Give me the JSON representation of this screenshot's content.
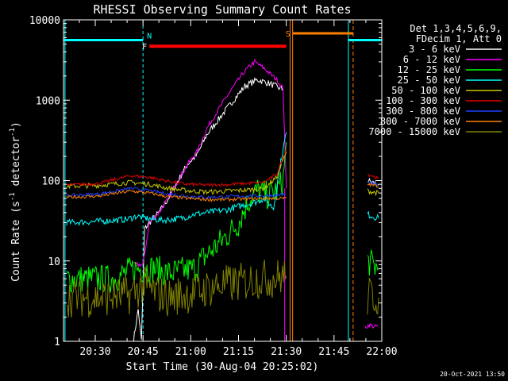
{
  "chart_data": {
    "type": "line",
    "title": "RHESSI Observing Summary Count Rates",
    "xlabel": "Start Time (30-Aug-04 20:25:02)",
    "ylabel_main": "Count Rate (s",
    "ylabel_sup1": "-1",
    "ylabel_mid": " detector",
    "ylabel_sup2": "-1",
    "ylabel_end": ")",
    "yscale": "log",
    "ylim": [
      1,
      10000
    ],
    "xlim_min": [
      25.03,
      125.0
    ],
    "x_ticks": [
      {
        "min": 35,
        "label": "20:30"
      },
      {
        "min": 50,
        "label": "20:45"
      },
      {
        "min": 65,
        "label": "21:00"
      },
      {
        "min": 80,
        "label": "21:15"
      },
      {
        "min": 95,
        "label": "21:30"
      },
      {
        "min": 110,
        "label": "21:45"
      },
      {
        "min": 125,
        "label": "22:00"
      }
    ],
    "y_ticks": [
      {
        "val": 1,
        "label": "1"
      },
      {
        "val": 10,
        "label": "10"
      },
      {
        "val": 100,
        "label": "100"
      },
      {
        "val": 1000,
        "label": "1000"
      },
      {
        "val": 10000,
        "label": "10000"
      }
    ],
    "legend_header1": "Det 1,3,4,5,6,9,",
    "legend_header2": "FDecim 1, Att 0",
    "series": [
      {
        "name": "3 - 6 keV",
        "color": "#ffffff",
        "segments": [
          [
            [
              47,
              1
            ],
            [
              48.5,
              2.5
            ],
            [
              49.5,
              1
            ],
            [
              50.5,
              25
            ],
            [
              52,
              30
            ],
            [
              55,
              40
            ],
            [
              58,
              60
            ],
            [
              61,
              100
            ],
            [
              64,
              160
            ],
            [
              67,
              210
            ],
            [
              70,
              370
            ],
            [
              74,
              600
            ],
            [
              78,
              950
            ],
            [
              82,
              1500
            ],
            [
              86,
              1800
            ],
            [
              90,
              1600
            ],
            [
              94,
              1350
            ]
          ],
          [
            [
              120.5,
              100
            ],
            [
              122,
              95
            ],
            [
              124,
              90
            ]
          ]
        ]
      },
      {
        "name": "6 - 12 keV",
        "color": "#ff00ff",
        "segments": [
          [
            [
              47,
              9
            ],
            [
              48.5,
              9
            ],
            [
              50,
              9
            ],
            [
              52,
              30
            ],
            [
              55,
              40
            ],
            [
              58,
              60
            ],
            [
              61,
              100
            ],
            [
              64,
              160
            ],
            [
              67,
              230
            ],
            [
              70,
              440
            ],
            [
              74,
              800
            ],
            [
              78,
              1400
            ],
            [
              82,
              2300
            ],
            [
              85,
              3000
            ],
            [
              88,
              2500
            ],
            [
              92,
              1800
            ],
            [
              94,
              1400
            ],
            [
              95,
              80
            ]
          ],
          [
            [
              119.8,
              1.5
            ],
            [
              121,
              1.6
            ],
            [
              123,
              1.5
            ],
            [
              124,
              1.6
            ]
          ]
        ]
      },
      {
        "name": "12 - 25 keV",
        "color": "#00ff00",
        "segments": [
          [
            [
              26,
              6
            ],
            [
              36,
              6
            ],
            [
              41,
              6
            ],
            [
              47,
              8
            ],
            [
              50,
              8
            ],
            [
              54,
              8
            ],
            [
              58,
              7
            ],
            [
              62,
              7.5
            ],
            [
              66,
              8
            ],
            [
              69,
              11
            ],
            [
              72,
              14
            ],
            [
              76,
              20
            ],
            [
              80,
              30
            ],
            [
              83,
              55
            ],
            [
              86,
              75
            ],
            [
              89,
              65
            ],
            [
              92,
              75
            ],
            [
              94,
              100
            ],
            [
              95,
              300
            ]
          ],
          [
            [
              120.5,
              10
            ],
            [
              122,
              9
            ],
            [
              124,
              8
            ]
          ]
        ]
      },
      {
        "name": "25 - 50 keV",
        "color": "#00ffff",
        "segments": [
          [
            [
              26,
              30
            ],
            [
              36,
              31
            ],
            [
              45,
              33
            ],
            [
              48,
              36
            ],
            [
              51,
              34
            ],
            [
              56,
              32
            ],
            [
              62,
              34
            ],
            [
              66,
              38
            ],
            [
              70,
              40
            ],
            [
              76,
              43
            ],
            [
              82,
              50
            ],
            [
              86,
              55
            ],
            [
              88,
              60
            ],
            [
              91,
              45
            ],
            [
              93,
              150
            ],
            [
              95,
              400
            ]
          ],
          [
            [
              120.5,
              38
            ],
            [
              122,
              36
            ],
            [
              124,
              34
            ]
          ]
        ]
      },
      {
        "name": "50 - 100 keV",
        "color": "#c8c800",
        "segments": [
          [
            [
              26,
              85
            ],
            [
              36,
              87
            ],
            [
              46,
              95
            ],
            [
              52,
              90
            ],
            [
              58,
              80
            ],
            [
              64,
              75
            ],
            [
              70,
              72
            ],
            [
              76,
              74
            ],
            [
              82,
              76
            ],
            [
              88,
              80
            ],
            [
              92,
              110
            ],
            [
              95,
              230
            ]
          ],
          [
            [
              120.5,
              75
            ],
            [
              122,
              72
            ],
            [
              124,
              70
            ]
          ]
        ]
      },
      {
        "name": "100 - 300 keV",
        "color": "#e00000",
        "segments": [
          [
            [
              26,
              88
            ],
            [
              36,
              92
            ],
            [
              46,
              115
            ],
            [
              52,
              110
            ],
            [
              58,
              98
            ],
            [
              64,
              90
            ],
            [
              70,
              88
            ],
            [
              76,
              89
            ],
            [
              82,
              92
            ],
            [
              88,
              95
            ],
            [
              92,
              120
            ],
            [
              95,
              250
            ]
          ],
          [
            [
              120.5,
              120
            ],
            [
              122,
              115
            ],
            [
              124,
              105
            ]
          ]
        ]
      },
      {
        "name": "300 - 800 keV",
        "color": "#2040ff",
        "segments": [
          [
            [
              26,
              65
            ],
            [
              36,
              68
            ],
            [
              46,
              80
            ],
            [
              52,
              75
            ],
            [
              58,
              68
            ],
            [
              64,
              64
            ],
            [
              70,
              62
            ],
            [
              76,
              63
            ],
            [
              82,
              64
            ],
            [
              88,
              65
            ],
            [
              92,
              66
            ],
            [
              95,
              68
            ]
          ],
          [
            [
              120.5,
              95
            ],
            [
              122,
              92
            ],
            [
              124,
              88
            ]
          ]
        ]
      },
      {
        "name": "800 - 7000 keV",
        "color": "#ff8000",
        "segments": [
          [
            [
              26,
              62
            ],
            [
              36,
              64
            ],
            [
              46,
              74
            ],
            [
              52,
              70
            ],
            [
              58,
              63
            ],
            [
              64,
              60
            ],
            [
              70,
              58
            ],
            [
              76,
              58
            ],
            [
              82,
              59
            ],
            [
              88,
              60
            ],
            [
              92,
              60
            ],
            [
              95,
              60
            ]
          ],
          [
            [
              120.5,
              90
            ],
            [
              122,
              88
            ],
            [
              124,
              85
            ]
          ]
        ]
      },
      {
        "name": "7000 - 15000 keV",
        "color": "#808000",
        "segments": [
          [
            [
              26,
              3.5
            ],
            [
              36,
              3.5
            ],
            [
              46,
              3.8
            ],
            [
              50,
              5
            ],
            [
              54,
              4
            ],
            [
              58,
              3.5
            ],
            [
              62,
              3.8
            ],
            [
              66,
              4
            ],
            [
              70,
              4.5
            ],
            [
              74,
              5
            ],
            [
              78,
              5.2
            ],
            [
              82,
              5.5
            ],
            [
              86,
              6
            ],
            [
              90,
              6
            ],
            [
              95,
              6.5
            ]
          ],
          [
            [
              120.5,
              3.5
            ],
            [
              122,
              3.8
            ],
            [
              124,
              3.5
            ]
          ]
        ]
      }
    ],
    "annotations": {
      "N_label": "N",
      "F_label": "F",
      "S_label": "S",
      "night_bars": [
        [
          25.03,
          50.0
        ],
        [
          114.5,
          125.0
        ]
      ],
      "night_level": 5600,
      "flare_bar": [
        52.0,
        95.0
      ],
      "flare_level": 4700,
      "saa_bar": [
        97.0,
        116.0
      ],
      "saa_level": 6800,
      "cyan_vlines": [
        25.5,
        114.5
      ],
      "cyan_dashed": [
        50.0,
        125.0
      ],
      "orange_vlines": [
        96.2,
        97.0
      ],
      "orange_dashed": [
        116.0
      ],
      "magenta_vline": 94.5
    },
    "footer_date": "20-Oct-2021 13:50"
  }
}
